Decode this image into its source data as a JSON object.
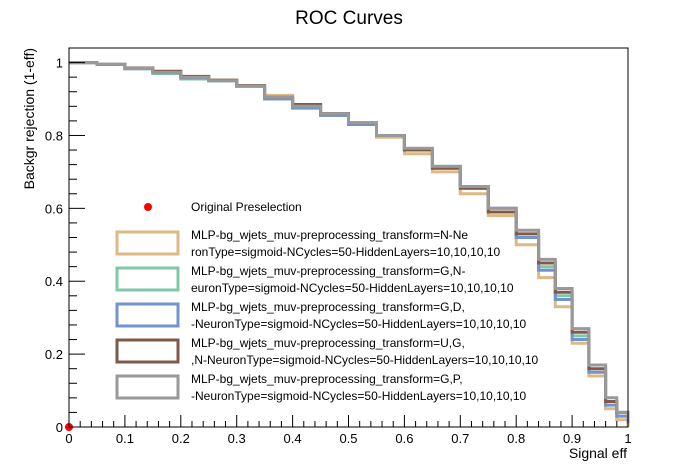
{
  "chart_data": {
    "type": "line",
    "title": "ROC Curves",
    "xlabel": "Signal eff",
    "ylabel": "Backgr rejection (1-eff)",
    "xlim": [
      0,
      1
    ],
    "ylim": [
      0,
      1.04
    ],
    "x_ticks": [
      "0",
      "0.1",
      "0.2",
      "0.3",
      "0.4",
      "0.5",
      "0.6",
      "0.7",
      "0.8",
      "0.9",
      "1"
    ],
    "y_ticks": [
      "0",
      "0.2",
      "0.4",
      "0.6",
      "0.8",
      "1"
    ],
    "grid": false,
    "legend_position": "center-left",
    "marker": {
      "name": "Original Preselection",
      "x": 0.0,
      "y": 0.0,
      "color": "#ff0000"
    },
    "series": [
      {
        "name_line1": "MLP-bg_wjets_muv-preprocessing_transform=N-Ne",
        "name_line2": "ronType=sigmoid-NCycles=50-HiddenLayers=10,10,10,10",
        "color": "#ddb985",
        "points": [
          [
            0,
            1.0
          ],
          [
            0.05,
            0.995
          ],
          [
            0.1,
            0.985
          ],
          [
            0.15,
            0.975
          ],
          [
            0.2,
            0.96
          ],
          [
            0.25,
            0.95
          ],
          [
            0.3,
            0.935
          ],
          [
            0.35,
            0.91
          ],
          [
            0.4,
            0.88
          ],
          [
            0.45,
            0.855
          ],
          [
            0.5,
            0.83
          ],
          [
            0.55,
            0.795
          ],
          [
            0.6,
            0.75
          ],
          [
            0.65,
            0.7
          ],
          [
            0.7,
            0.64
          ],
          [
            0.75,
            0.58
          ],
          [
            0.8,
            0.5
          ],
          [
            0.84,
            0.41
          ],
          [
            0.87,
            0.33
          ],
          [
            0.9,
            0.23
          ],
          [
            0.93,
            0.14
          ],
          [
            0.96,
            0.05
          ],
          [
            0.98,
            0.02
          ],
          [
            1.0,
            0.0
          ]
        ]
      },
      {
        "name_line1": "MLP-bg_wjets_muv-preprocessing_transform=G,N-",
        "name_line2": "euronType=sigmoid-NCycles=50-HiddenLayers=10,10,10,10",
        "color": "#80c8a8",
        "points": [
          [
            0,
            1.0
          ],
          [
            0.05,
            0.995
          ],
          [
            0.1,
            0.983
          ],
          [
            0.15,
            0.97
          ],
          [
            0.2,
            0.955
          ],
          [
            0.25,
            0.95
          ],
          [
            0.3,
            0.935
          ],
          [
            0.35,
            0.905
          ],
          [
            0.4,
            0.885
          ],
          [
            0.45,
            0.86
          ],
          [
            0.5,
            0.83
          ],
          [
            0.55,
            0.8
          ],
          [
            0.6,
            0.76
          ],
          [
            0.65,
            0.71
          ],
          [
            0.7,
            0.655
          ],
          [
            0.75,
            0.59
          ],
          [
            0.8,
            0.52
          ],
          [
            0.84,
            0.44
          ],
          [
            0.87,
            0.36
          ],
          [
            0.9,
            0.25
          ],
          [
            0.93,
            0.17
          ],
          [
            0.96,
            0.07
          ],
          [
            0.98,
            0.03
          ],
          [
            1.0,
            0.01
          ]
        ]
      },
      {
        "name_line1": "MLP-bg_wjets_muv-preprocessing_transform=G,D,",
        "name_line2": "-NeuronType=sigmoid-NCycles=50-HiddenLayers=10,10,10,10",
        "color": "#7393d0",
        "points": [
          [
            0,
            1.0
          ],
          [
            0.05,
            0.995
          ],
          [
            0.1,
            0.983
          ],
          [
            0.15,
            0.972
          ],
          [
            0.2,
            0.958
          ],
          [
            0.25,
            0.95
          ],
          [
            0.3,
            0.935
          ],
          [
            0.35,
            0.9
          ],
          [
            0.4,
            0.875
          ],
          [
            0.45,
            0.855
          ],
          [
            0.5,
            0.83
          ],
          [
            0.55,
            0.8
          ],
          [
            0.6,
            0.76
          ],
          [
            0.65,
            0.715
          ],
          [
            0.7,
            0.66
          ],
          [
            0.75,
            0.6
          ],
          [
            0.8,
            0.52
          ],
          [
            0.84,
            0.43
          ],
          [
            0.87,
            0.35
          ],
          [
            0.9,
            0.24
          ],
          [
            0.93,
            0.15
          ],
          [
            0.96,
            0.06
          ],
          [
            0.98,
            0.03
          ],
          [
            1.0,
            0.01
          ]
        ]
      },
      {
        "name_line1": "MLP-bg_wjets_muv-preprocessing_transform=U,G,",
        "name_line2": ",N-NeuronType=sigmoid-NCycles=50-HiddenLayers=10,10,10,10",
        "color": "#805a48",
        "points": [
          [
            0,
            1.0
          ],
          [
            0.05,
            0.995
          ],
          [
            0.1,
            0.985
          ],
          [
            0.15,
            0.976
          ],
          [
            0.2,
            0.962
          ],
          [
            0.25,
            0.952
          ],
          [
            0.3,
            0.937
          ],
          [
            0.35,
            0.905
          ],
          [
            0.4,
            0.885
          ],
          [
            0.45,
            0.86
          ],
          [
            0.5,
            0.835
          ],
          [
            0.55,
            0.8
          ],
          [
            0.6,
            0.76
          ],
          [
            0.65,
            0.71
          ],
          [
            0.7,
            0.655
          ],
          [
            0.75,
            0.59
          ],
          [
            0.8,
            0.53
          ],
          [
            0.84,
            0.45
          ],
          [
            0.87,
            0.37
          ],
          [
            0.9,
            0.26
          ],
          [
            0.93,
            0.16
          ],
          [
            0.96,
            0.07
          ],
          [
            0.98,
            0.04
          ],
          [
            1.0,
            0.02
          ]
        ]
      },
      {
        "name_line1": "MLP-bg_wjets_muv-preprocessing_transform=G,P,",
        "name_line2": "-NeuronType=sigmoid-NCycles=50-HiddenLayers=10,10,10,10",
        "color": "#999999",
        "points": [
          [
            0,
            1.0
          ],
          [
            0.05,
            0.995
          ],
          [
            0.1,
            0.984
          ],
          [
            0.15,
            0.973
          ],
          [
            0.2,
            0.96
          ],
          [
            0.25,
            0.95
          ],
          [
            0.3,
            0.936
          ],
          [
            0.35,
            0.905
          ],
          [
            0.4,
            0.88
          ],
          [
            0.45,
            0.86
          ],
          [
            0.5,
            0.835
          ],
          [
            0.55,
            0.8
          ],
          [
            0.6,
            0.765
          ],
          [
            0.65,
            0.715
          ],
          [
            0.7,
            0.66
          ],
          [
            0.75,
            0.6
          ],
          [
            0.8,
            0.54
          ],
          [
            0.84,
            0.46
          ],
          [
            0.87,
            0.38
          ],
          [
            0.9,
            0.27
          ],
          [
            0.93,
            0.17
          ],
          [
            0.96,
            0.08
          ],
          [
            0.98,
            0.04
          ],
          [
            1.0,
            0.02
          ]
        ]
      }
    ]
  }
}
